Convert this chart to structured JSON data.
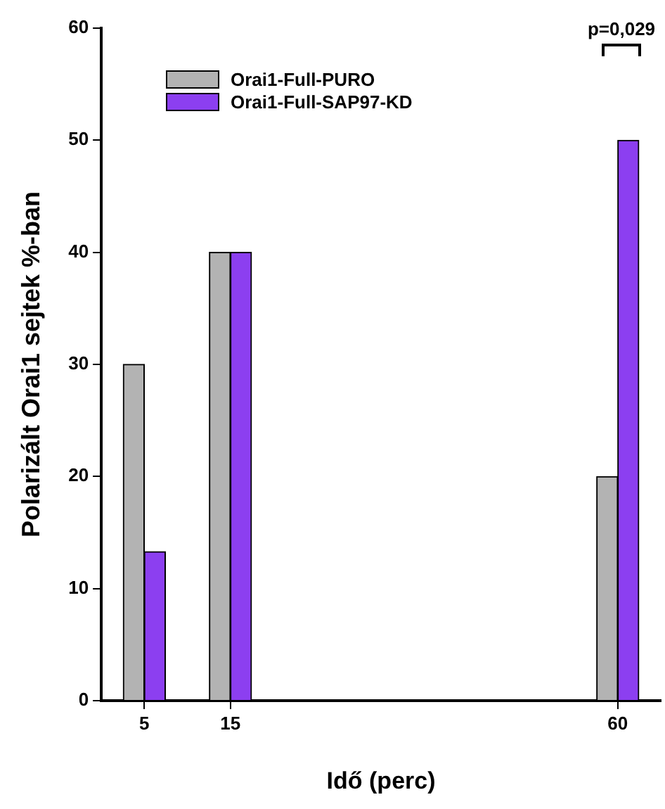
{
  "chart_data": {
    "type": "bar",
    "xlabel": "Idő (perc)",
    "ylabel": "Polarizált Orai1 sejtek %-ban",
    "x": [
      5,
      15,
      60
    ],
    "xlim": [
      0,
      65
    ],
    "xticks": [
      5,
      15,
      60
    ],
    "ylim": [
      0,
      60
    ],
    "yticks": [
      0,
      10,
      20,
      30,
      40,
      50,
      60
    ],
    "series": [
      {
        "name": "Orai1-Full-PURO",
        "color": "#b3b3b3",
        "values": [
          30,
          40,
          20
        ]
      },
      {
        "name": "Orai1-Full-SAP97-KD",
        "color": "#8c3ff0",
        "values": [
          13.3,
          40,
          50
        ]
      }
    ],
    "annotations": [
      "p=0,029"
    ],
    "grid": false,
    "legend": "top left"
  }
}
